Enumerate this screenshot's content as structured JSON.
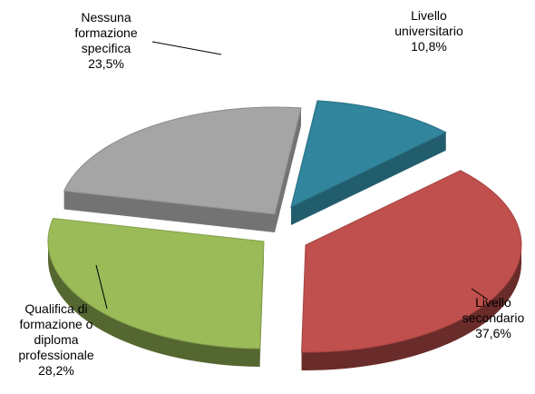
{
  "chart_data": {
    "type": "pie",
    "title": "",
    "slices": [
      {
        "label": "Livello universitario",
        "value": 10.8,
        "value_label": "10,8%",
        "color": "#31859c"
      },
      {
        "label": "Livello secondario",
        "value": 37.6,
        "value_label": "37,6%",
        "color": "#c0504d"
      },
      {
        "label": "Qualifica di formazione o diploma professionale",
        "value": 28.2,
        "value_label": "28,2%",
        "color": "#9bbb59"
      },
      {
        "label": "Nessuna formazione specifica",
        "value": 23.5,
        "value_label": "23,5%",
        "color": "#a5a5a5"
      }
    ],
    "exploded": true,
    "legend": "none",
    "style": "3d"
  },
  "labels": {
    "universitario": {
      "line1": "Livello",
      "line2": "universitario",
      "pct": "10,8%"
    },
    "secondario": {
      "line1": "Livello",
      "line2": "secondario",
      "pct": "37,6%"
    },
    "qualifica": {
      "line1": "Qualifica di",
      "line2": "formazione o",
      "line3": "diploma",
      "line4": "professionale",
      "pct": "28,2%"
    },
    "nessuna": {
      "line1": "Nessuna",
      "line2": "formazione",
      "line3": "specifica",
      "pct": "23,5%"
    }
  }
}
